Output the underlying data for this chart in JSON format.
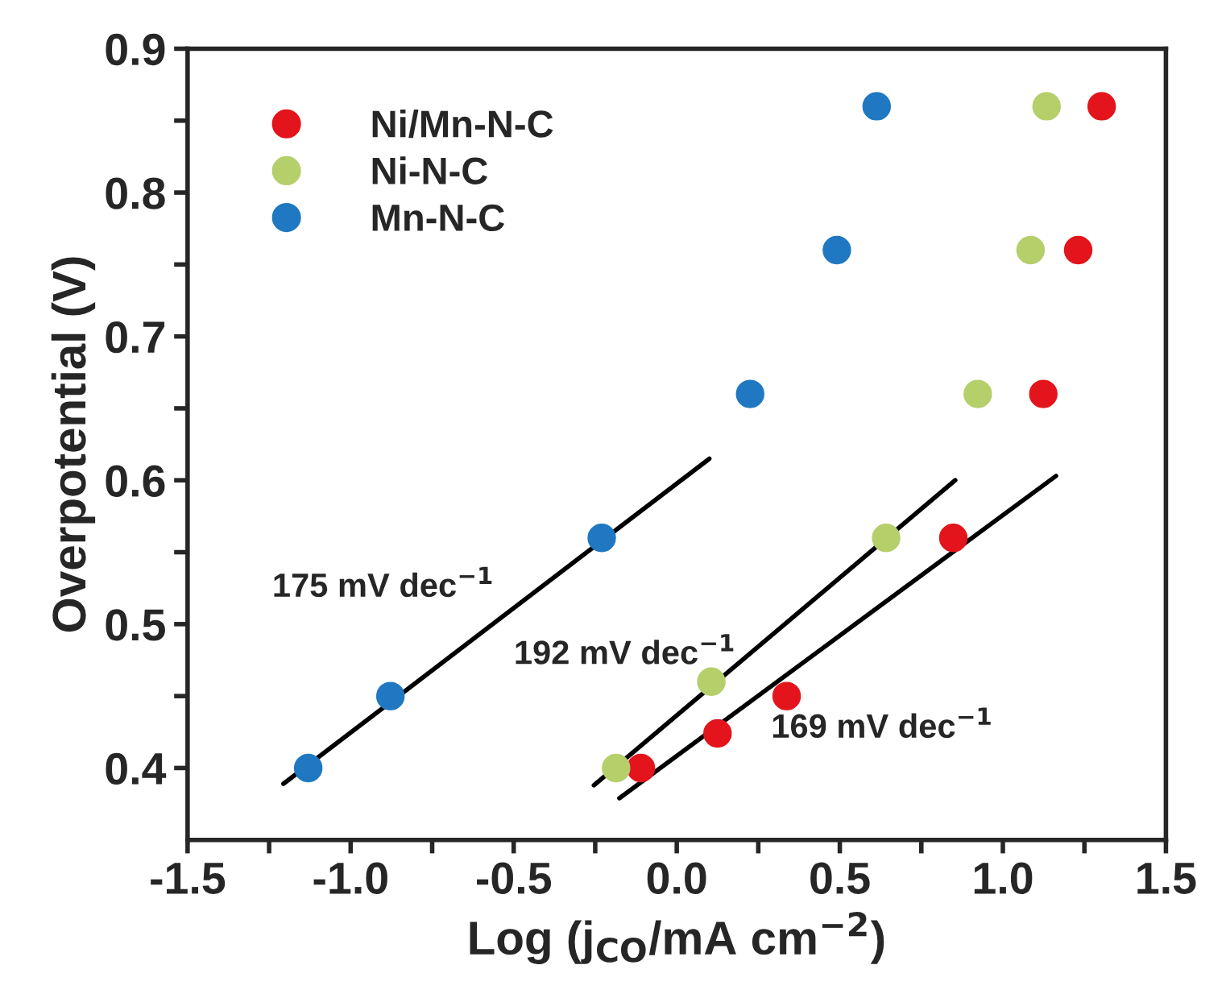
{
  "chart_data": {
    "type": "scatter",
    "xlabel": "Log (j$_{CO}$/mA cm$^{−2}$)",
    "ylabel": "Overpotential (V)",
    "xlim": [
      -1.5,
      1.5
    ],
    "ylim": [
      0.35,
      0.9
    ],
    "xticks": [
      -1.5,
      {
        "value": -1.25,
        "label": null
      },
      {
        "value": -1,
        "label": "-1.0"
      },
      {
        "value": -0.75,
        "label": null
      },
      -0.5,
      {
        "value": -0.25,
        "label": null
      },
      {
        "value": 0,
        "label": "0.0"
      },
      {
        "value": 0.25,
        "label": null
      },
      0.5,
      {
        "value": 0.75,
        "label": null
      },
      {
        "value": 1,
        "label": "1.0"
      },
      {
        "value": 1.25,
        "label": null
      },
      1.5
    ],
    "yticks": [
      0.4,
      {
        "value": 0.45,
        "label": null
      },
      0.5,
      {
        "value": 0.55,
        "label": null
      },
      0.6,
      {
        "value": 0.65,
        "label": null
      },
      0.7,
      {
        "value": 0.75,
        "label": null
      },
      0.8,
      {
        "value": 0.85,
        "label": null
      },
      0.9
    ],
    "marker": "circle",
    "legend": "top left",
    "grid": false,
    "series": [
      {
        "name": "Ni/Mn-N-C",
        "color": "#e3141b",
        "x": [
          -0.11,
          0.125,
          0.337,
          0.848,
          1.124,
          1.231,
          1.303
        ],
        "values": [
          0.4,
          0.424,
          0.45,
          0.56,
          0.66,
          0.76,
          0.86
        ]
      },
      {
        "name": "Ni-N-C",
        "color": "#b5cf6b",
        "x": [
          -0.186,
          0.106,
          0.642,
          0.923,
          1.085,
          1.134
        ],
        "values": [
          0.4,
          0.46,
          0.56,
          0.66,
          0.76,
          0.86
        ]
      },
      {
        "name": "Mn-N-C",
        "color": "#1f78c1",
        "x": [
          -1.13,
          -0.878,
          -0.23,
          0.225,
          0.491,
          0.613
        ],
        "values": [
          0.4,
          0.45,
          0.56,
          0.66,
          0.76,
          0.86
        ]
      },
      {
        "type": "line",
        "color": "#000000",
        "marker": "none",
        "x": [
          -1.206,
          0.1
        ],
        "values": [
          0.389,
          0.615
        ]
      },
      {
        "type": "line",
        "color": "#000000",
        "marker": "none",
        "x": [
          -0.254,
          0.854
        ],
        "values": [
          0.388,
          0.6
        ]
      },
      {
        "type": "line",
        "color": "#000000",
        "marker": "none",
        "x": [
          -0.176,
          1.163
        ],
        "values": [
          0.379,
          0.603
        ]
      }
    ],
    "annotations": [
      "175 mV dec$^{−1}$",
      "192 mV dec$^{−1}$",
      "169 mV dec$^{−1}$"
    ]
  }
}
